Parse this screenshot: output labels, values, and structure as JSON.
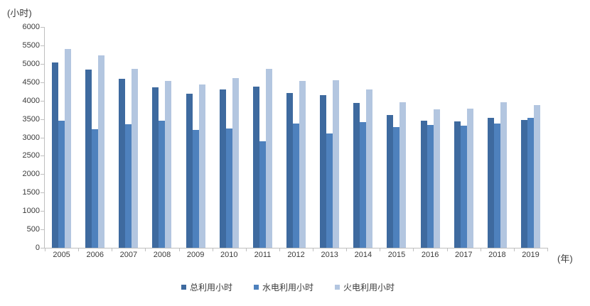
{
  "chart_data": {
    "type": "bar",
    "title": "",
    "ylabel": "(小时)",
    "xlabel": "(年)",
    "categories": [
      "2005",
      "2006",
      "2007",
      "2008",
      "2009",
      "2010",
      "2011",
      "2012",
      "2013",
      "2014",
      "2015",
      "2016",
      "2017",
      "2018",
      "2019"
    ],
    "series": [
      {
        "name": "总利用小时",
        "color": "#3e6a9f",
        "values": [
          5040,
          4850,
          4590,
          4360,
          4180,
          4310,
          4370,
          4210,
          4150,
          3930,
          3610,
          3450,
          3440,
          3540,
          3480
        ]
      },
      {
        "name": "水电利用小时",
        "color": "#4e81bd",
        "values": [
          3450,
          3220,
          3350,
          3450,
          3200,
          3240,
          2900,
          3370,
          3100,
          3420,
          3280,
          3340,
          3310,
          3370,
          3530
        ]
      },
      {
        "name": "火电利用小时",
        "color": "#b3c6e0",
        "values": [
          5410,
          5220,
          4870,
          4540,
          4430,
          4620,
          4870,
          4530,
          4560,
          4300,
          3960,
          3770,
          3790,
          3960,
          3870
        ]
      }
    ],
    "ylim": [
      0,
      6000
    ],
    "ytick_step": 500,
    "grid": "off",
    "legend_position": "bottom",
    "axis_color": "#bfbfbf",
    "label_color": "#3b3b3b"
  }
}
